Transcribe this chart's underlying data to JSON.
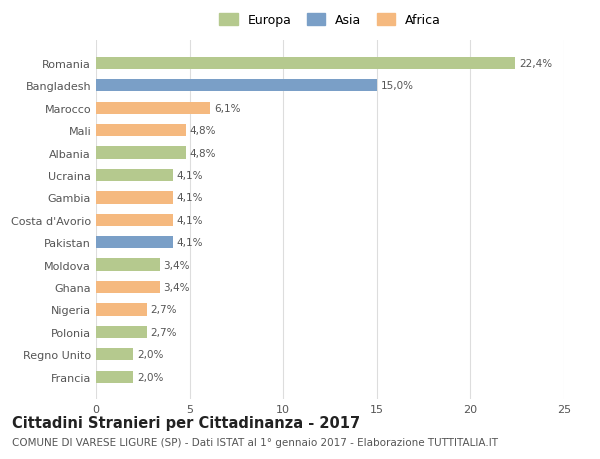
{
  "categories": [
    "Francia",
    "Regno Unito",
    "Polonia",
    "Nigeria",
    "Ghana",
    "Moldova",
    "Pakistan",
    "Costa d'Avorio",
    "Gambia",
    "Ucraina",
    "Albania",
    "Mali",
    "Marocco",
    "Bangladesh",
    "Romania"
  ],
  "values": [
    2.0,
    2.0,
    2.7,
    2.7,
    3.4,
    3.4,
    4.1,
    4.1,
    4.1,
    4.1,
    4.8,
    4.8,
    6.1,
    15.0,
    22.4
  ],
  "labels": [
    "2,0%",
    "2,0%",
    "2,7%",
    "2,7%",
    "3,4%",
    "3,4%",
    "4,1%",
    "4,1%",
    "4,1%",
    "4,1%",
    "4,8%",
    "4,8%",
    "6,1%",
    "15,0%",
    "22,4%"
  ],
  "colors": [
    "#b5c98e",
    "#b5c98e",
    "#b5c98e",
    "#f5b97f",
    "#f5b97f",
    "#b5c98e",
    "#7a9fc7",
    "#f5b97f",
    "#f5b97f",
    "#b5c98e",
    "#b5c98e",
    "#f5b97f",
    "#f5b97f",
    "#7a9fc7",
    "#b5c98e"
  ],
  "legend_labels": [
    "Europa",
    "Asia",
    "Africa"
  ],
  "legend_colors": [
    "#b5c98e",
    "#7a9fc7",
    "#f5b97f"
  ],
  "title": "Cittadini Stranieri per Cittadinanza - 2017",
  "subtitle": "COMUNE DI VARESE LIGURE (SP) - Dati ISTAT al 1° gennaio 2017 - Elaborazione TUTTITALIA.IT",
  "xlim": [
    0,
    25
  ],
  "xticks": [
    0,
    5,
    10,
    15,
    20,
    25
  ],
  "background_color": "#ffffff",
  "grid_color": "#dddddd",
  "bar_height": 0.55,
  "title_fontsize": 10.5,
  "subtitle_fontsize": 7.5,
  "label_fontsize": 7.5,
  "tick_fontsize": 8,
  "legend_fontsize": 9
}
